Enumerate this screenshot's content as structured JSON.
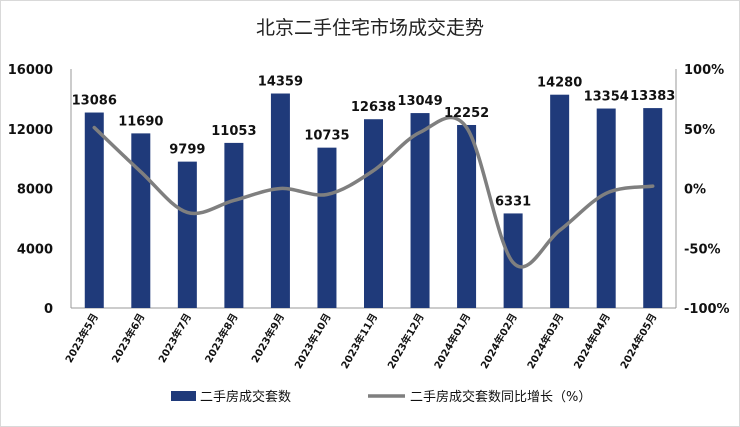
{
  "chart_data": {
    "type": "bar+line",
    "title": "北京二手住宅市场成交走势",
    "categories": [
      "2023年5月",
      "2023年6月",
      "2023年7月",
      "2023年8月",
      "2023年9月",
      "2023年10月",
      "2023年11月",
      "2023年12月",
      "2024年01月",
      "2024年02月",
      "2024年03月",
      "2024年04月",
      "2024年05月"
    ],
    "series": [
      {
        "name": "二手房成交套数",
        "type": "bar",
        "axis": "left",
        "color": "#1f3a7a",
        "values": [
          13086,
          11690,
          9799,
          11053,
          14359,
          10735,
          12638,
          13049,
          12252,
          6331,
          14280,
          13354,
          13383
        ]
      },
      {
        "name": "二手房成交套数同比增长（%）",
        "type": "line",
        "axis": "right",
        "color": "#7f7f7f",
        "values": [
          51,
          14,
          -20,
          -10,
          0,
          -5,
          15,
          47,
          51,
          -62,
          -35,
          -4,
          2
        ]
      }
    ],
    "y_left": {
      "min": 0,
      "max": 16000,
      "ticks": [
        "0",
        "4000",
        "8000",
        "12000",
        "16000"
      ]
    },
    "y_right": {
      "min": -100,
      "max": 100,
      "ticks": [
        "-100%",
        "-50%",
        "0%",
        "50%",
        "100%"
      ]
    },
    "legend": "bottom",
    "grid": false
  }
}
